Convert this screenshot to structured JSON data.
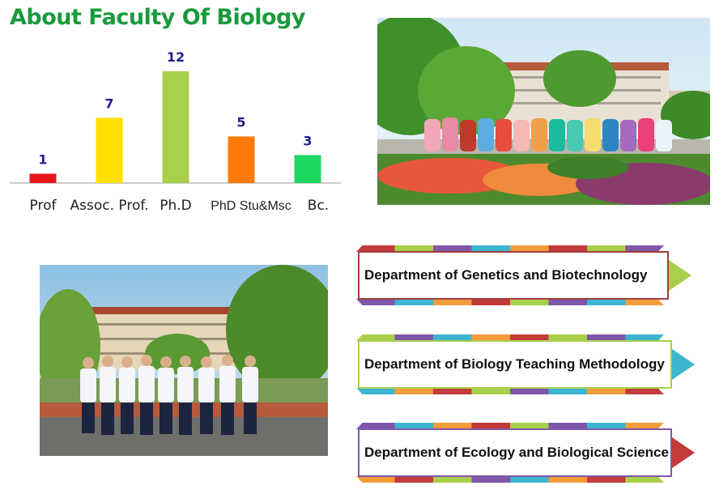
{
  "page": {
    "title": "About Faculty Of Biology"
  },
  "chart_data": {
    "type": "bar",
    "categories": [
      "Prof",
      "Assoc. Prof.",
      "Ph.D",
      "PhD Stu&Msc",
      "Bc."
    ],
    "values": [
      1,
      7,
      12,
      5,
      3
    ],
    "bar_colors": [
      "#e8141c",
      "#ffe000",
      "#a8d04a",
      "#ff7a0a",
      "#1ed760"
    ],
    "ylim": [
      0,
      12
    ],
    "grid": false,
    "legend": "none"
  },
  "departments": [
    {
      "label": "Department  of Genetics and Biotechnology",
      "border_color": "#a33d3d",
      "arrow_color": "#a8d04a"
    },
    {
      "label": "Department  of Biology Teaching Methodology",
      "border_color": "#a8d04a",
      "arrow_color": "#3cb6cf"
    },
    {
      "label": "Department  of Ecology and Biological Science",
      "border_color": "#7e57a8",
      "arrow_color": "#c33a3a"
    }
  ],
  "stripe_colors": [
    "#c33a3a",
    "#a8d04a",
    "#7e57a8",
    "#3cb6cf",
    "#f39c3a"
  ]
}
